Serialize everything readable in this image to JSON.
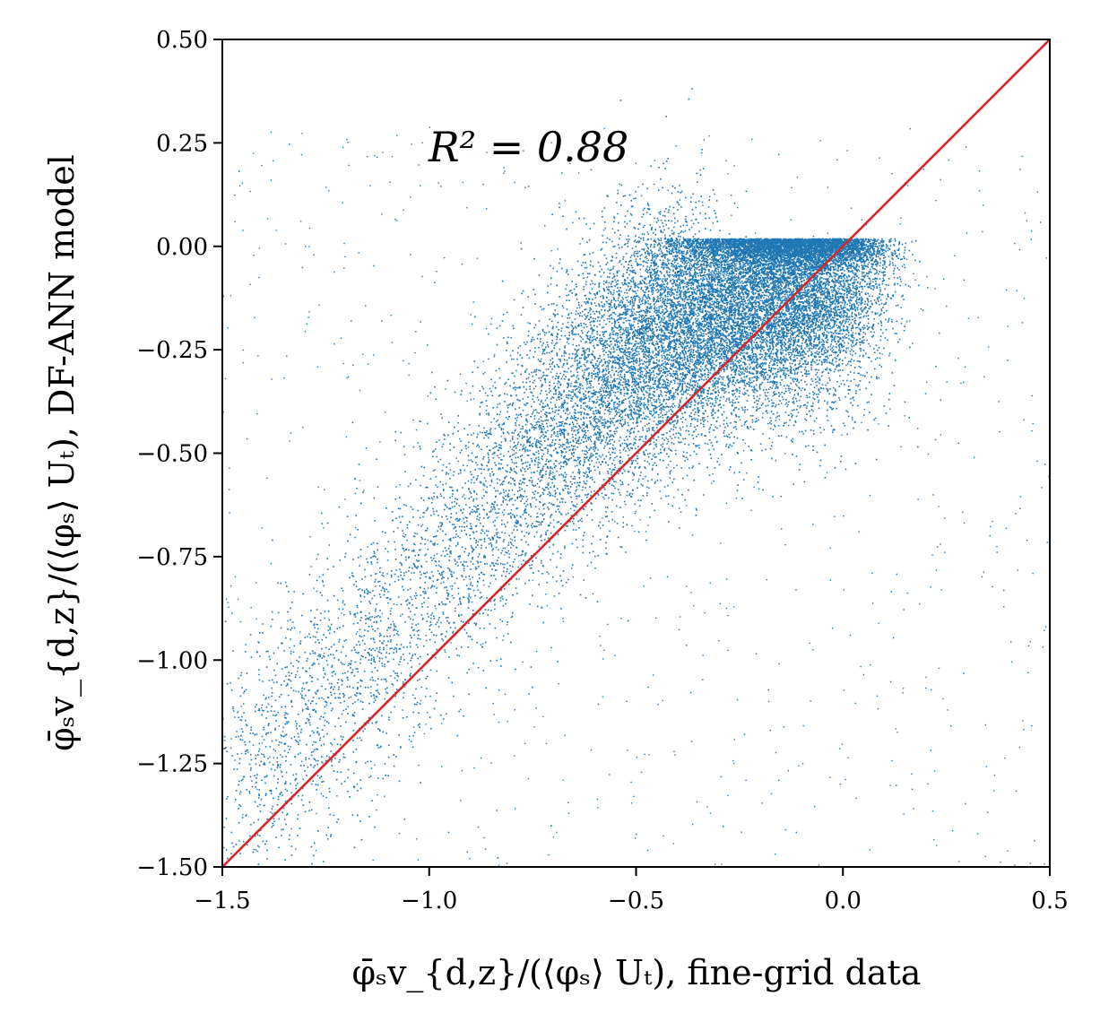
{
  "chart_data": {
    "type": "scatter",
    "title": "",
    "xlabel": "φ̄ₛv_{d,z}/(⟨φₛ⟩ Uₜ), fine-grid data",
    "ylabel": "φ̄ₛv_{d,z}/(⟨φₛ⟩ Uₜ), DF-ANN model",
    "xlim": [
      -1.5,
      0.5
    ],
    "ylim": [
      -1.5,
      0.5
    ],
    "x_ticks": [
      -1.5,
      -1.0,
      -0.5,
      0.0,
      0.5
    ],
    "x_tick_labels": [
      "−1.5",
      "−1.0",
      "−0.5",
      "0.0",
      "0.5"
    ],
    "y_ticks": [
      -1.5,
      -1.25,
      -1.0,
      -0.75,
      -0.5,
      -0.25,
      0.0,
      0.25,
      0.5
    ],
    "y_tick_labels": [
      "−1.50",
      "−1.25",
      "−1.00",
      "−0.75",
      "−0.50",
      "−0.25",
      "0.00",
      "0.25",
      "0.50"
    ],
    "annotation": "R² = 0.88",
    "grid": false,
    "colors": {
      "points": "#1f77b4",
      "reference_line": "#d62728"
    },
    "reference_line": {
      "x": [
        -1.5,
        0.5
      ],
      "y": [
        -1.5,
        0.5
      ]
    },
    "series": [
      {
        "x": [
          -1.45,
          -1.4,
          -1.35,
          -1.3,
          -1.25,
          -1.2,
          -1.15,
          -1.1,
          -1.05,
          -1.0,
          -0.95,
          -0.9,
          -0.85,
          -0.8,
          -0.75,
          -0.7,
          -0.65,
          -0.6,
          -0.55,
          -0.5,
          -0.45,
          -0.4,
          -0.35,
          -0.3,
          -0.25,
          -0.2,
          -0.15,
          -0.1,
          -0.05,
          0.0
        ],
        "y": [
          -1.28,
          -1.25,
          -1.2,
          -1.15,
          -1.1,
          -1.04,
          -0.98,
          -0.92,
          -0.86,
          -0.8,
          -0.74,
          -0.68,
          -0.62,
          -0.56,
          -0.5,
          -0.45,
          -0.4,
          -0.35,
          -0.3,
          -0.26,
          -0.22,
          -0.18,
          -0.15,
          -0.12,
          -0.1,
          -0.08,
          -0.07,
          -0.06,
          -0.05,
          -0.03
        ]
      }
    ]
  }
}
